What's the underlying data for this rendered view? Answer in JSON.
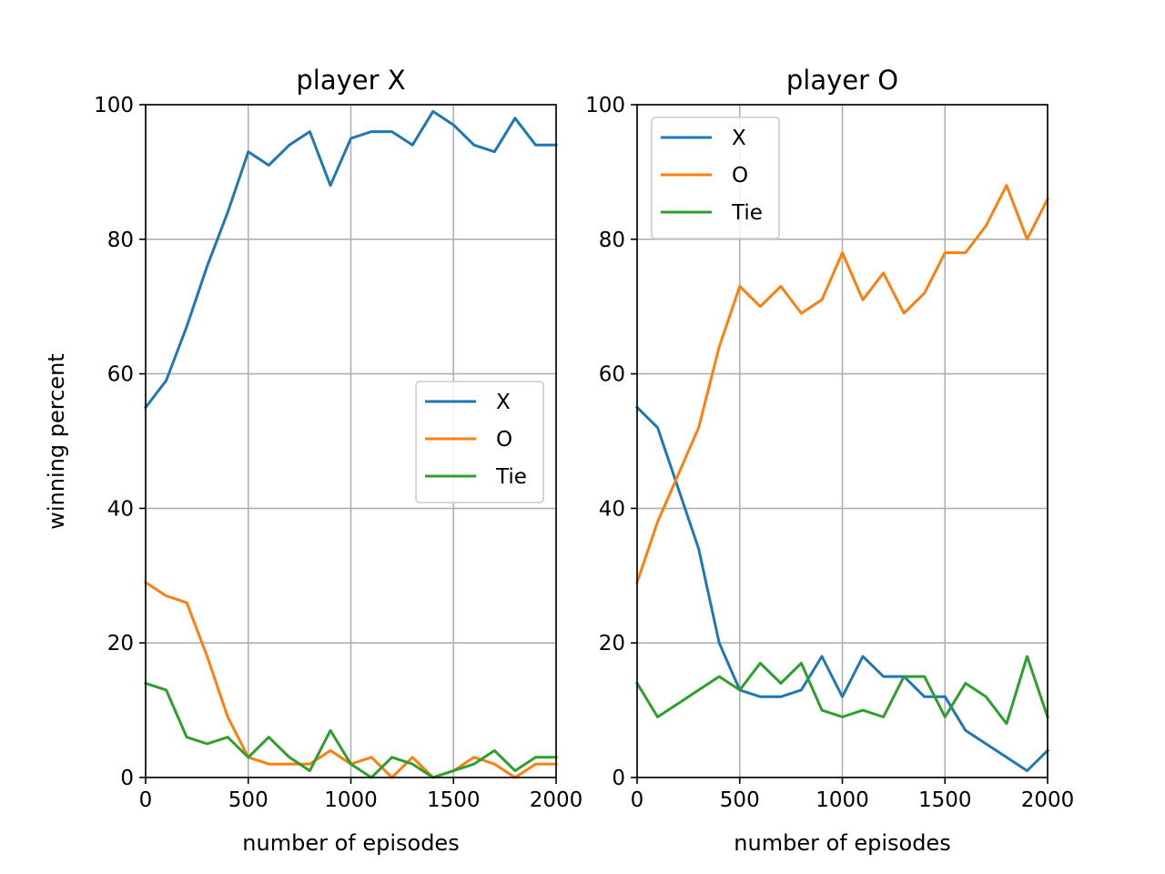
{
  "figure": {
    "ylabel": "winning percent"
  },
  "chart_data": [
    {
      "type": "line",
      "title": "player X",
      "xlabel": "number of episodes",
      "ylabel": "winning percent",
      "xlim": [
        0,
        2000
      ],
      "ylim": [
        0,
        100
      ],
      "xticks": [
        "0",
        "500",
        "1000",
        "1500",
        "2000"
      ],
      "yticks": [
        "0",
        "20",
        "40",
        "60",
        "80",
        "100"
      ],
      "grid": true,
      "legend": "center-right",
      "x": [
        0,
        100,
        200,
        300,
        400,
        500,
        600,
        700,
        800,
        900,
        1000,
        1100,
        1200,
        1300,
        1400,
        1500,
        1600,
        1700,
        1800,
        1900,
        2000
      ],
      "series": [
        {
          "name": "X",
          "color": "#1f77b4",
          "values": [
            55,
            59,
            67,
            76,
            84,
            93,
            91,
            94,
            96,
            88,
            95,
            96,
            96,
            94,
            99,
            97,
            94,
            93,
            98,
            94,
            94
          ]
        },
        {
          "name": "O",
          "color": "#ff7f0e",
          "values": [
            29,
            27,
            26,
            18,
            9,
            3,
            2,
            2,
            2,
            4,
            2,
            3,
            0,
            3,
            0,
            1,
            3,
            2,
            0,
            2,
            2
          ]
        },
        {
          "name": "Tie",
          "color": "#2ca02c",
          "values": [
            14,
            13,
            6,
            5,
            6,
            3,
            6,
            3,
            1,
            7,
            2,
            0,
            3,
            2,
            0,
            1,
            2,
            4,
            1,
            3,
            3
          ]
        }
      ]
    },
    {
      "type": "line",
      "title": "player O",
      "xlabel": "number of episodes",
      "xlim": [
        0,
        2000
      ],
      "ylim": [
        0,
        100
      ],
      "xticks": [
        "0",
        "500",
        "1000",
        "1500",
        "2000"
      ],
      "yticks": [
        "0",
        "20",
        "40",
        "60",
        "80",
        "100"
      ],
      "grid": true,
      "legend": "top-left",
      "x": [
        0,
        100,
        200,
        300,
        400,
        500,
        600,
        700,
        800,
        900,
        1000,
        1100,
        1200,
        1300,
        1400,
        1500,
        1600,
        1700,
        1800,
        1900,
        2000
      ],
      "series": [
        {
          "name": "X",
          "color": "#1f77b4",
          "values": [
            55,
            52,
            43,
            34,
            20,
            13,
            12,
            12,
            13,
            18,
            12,
            18,
            15,
            15,
            12,
            12,
            7,
            5,
            3,
            1,
            4
          ]
        },
        {
          "name": "O",
          "color": "#ff7f0e",
          "values": [
            29,
            38,
            45,
            52,
            64,
            73,
            70,
            73,
            69,
            71,
            78,
            71,
            75,
            69,
            72,
            78,
            78,
            82,
            88,
            80,
            86
          ]
        },
        {
          "name": "Tie",
          "color": "#2ca02c",
          "values": [
            14,
            9,
            11,
            13,
            15,
            13,
            17,
            14,
            17,
            10,
            9,
            10,
            9,
            15,
            15,
            9,
            14,
            12,
            8,
            18,
            9
          ]
        }
      ]
    }
  ]
}
